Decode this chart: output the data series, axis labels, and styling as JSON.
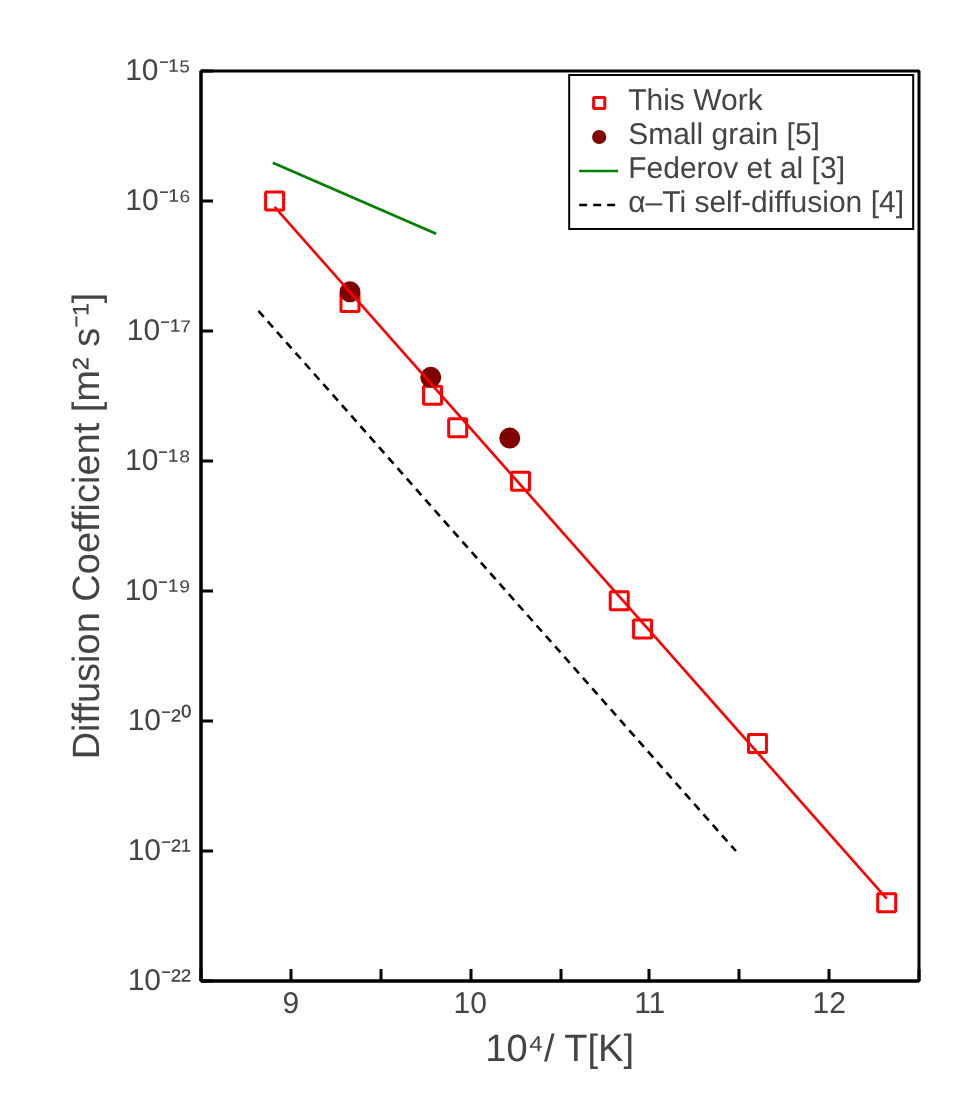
{
  "chart_data": {
    "type": "scatter",
    "xlabel": "10⁴/ T[K]",
    "ylabel": "Diffusion Coefficient [m² s⁻¹]",
    "log": "y",
    "xlim": [
      8.5,
      12.5
    ],
    "ylim": [
      1e-22,
      1e-15
    ],
    "xticks": [
      {
        "value": 8.5,
        "label": null
      },
      9,
      {
        "value": 9.5,
        "label": null
      },
      10,
      {
        "value": 10.5,
        "label": null
      },
      11,
      {
        "value": 11.5,
        "label": null
      },
      12,
      {
        "value": 12.5,
        "label": null
      }
    ],
    "yticks": [
      {
        "value": 1e-22,
        "label": "10⁻²²"
      },
      {
        "value": 1e-21,
        "label": "10⁻²¹"
      },
      {
        "value": 1e-20,
        "label": "10⁻²⁰"
      },
      {
        "value": 1e-19,
        "label": "10⁻¹⁹"
      },
      {
        "value": 1e-18,
        "label": "10⁻¹⁸"
      },
      {
        "value": 1e-17,
        "label": "10⁻¹⁷"
      },
      {
        "value": 1e-16,
        "label": "10⁻¹⁶"
      },
      {
        "value": 1e-15,
        "label": "10⁻¹⁵"
      }
    ],
    "grid": false,
    "legend": "top right",
    "series": [
      {
        "name": "This Work",
        "marker": "square",
        "color": "#ff0000",
        "x": [
          8.91,
          9.33,
          9.79,
          9.93,
          10.28,
          10.83,
          10.96,
          11.6,
          12.32
        ],
        "values": [
          1e-16,
          1.66e-17,
          3.2e-18,
          1.8e-18,
          7e-19,
          8.4e-20,
          5.1e-20,
          6.7e-21,
          4e-22
        ]
      },
      {
        "name": "Small grain [5]",
        "marker": "circle",
        "color": "#800000",
        "x": [
          9.33,
          9.78,
          10.22
        ],
        "values": [
          2e-17,
          4.4e-18,
          1.5e-18
        ]
      },
      {
        "name": "Federov et al [3]",
        "type": "line",
        "line_style": "solid",
        "color": "#008000",
        "x": [
          8.9,
          9.81
        ],
        "values": [
          1.97e-16,
          5.6e-17
        ]
      },
      {
        "name": "α–Ti self-diffusion [4]",
        "type": "line",
        "line_style": "dashed",
        "color": "#000000",
        "x": [
          8.82,
          11.48
        ],
        "values": [
          1.43e-17,
          1e-21
        ]
      },
      {
        "type": "line",
        "line_style": "solid",
        "color": "#ff0000",
        "x": [
          8.91,
          12.32
        ],
        "values": [
          9e-17,
          4.3e-22
        ]
      }
    ]
  }
}
